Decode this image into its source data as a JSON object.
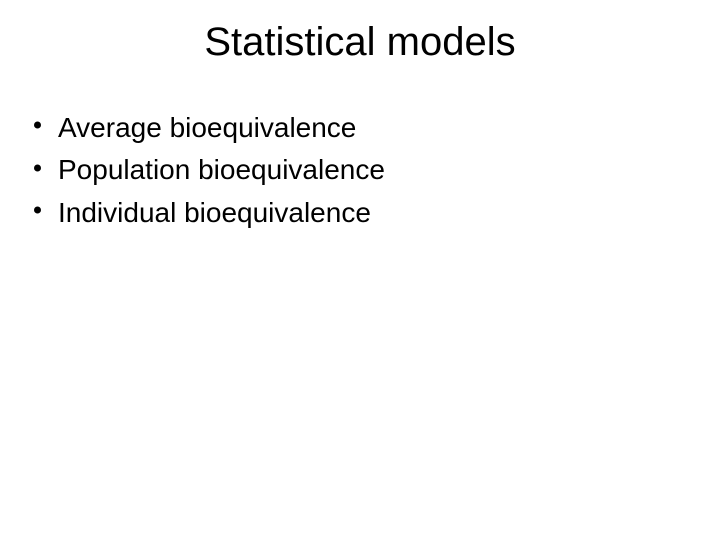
{
  "slide": {
    "title": "Statistical models",
    "title_fontsize": 40,
    "title_color": "#000000",
    "background_color": "#ffffff",
    "bullets": [
      {
        "text": "Average bioequivalence"
      },
      {
        "text": "Population bioequivalence"
      },
      {
        "text": "Individual bioequivalence"
      }
    ],
    "bullet_fontsize": 28,
    "bullet_color": "#000000",
    "bullet_marker_color": "#000000",
    "font_family": "Arial"
  }
}
